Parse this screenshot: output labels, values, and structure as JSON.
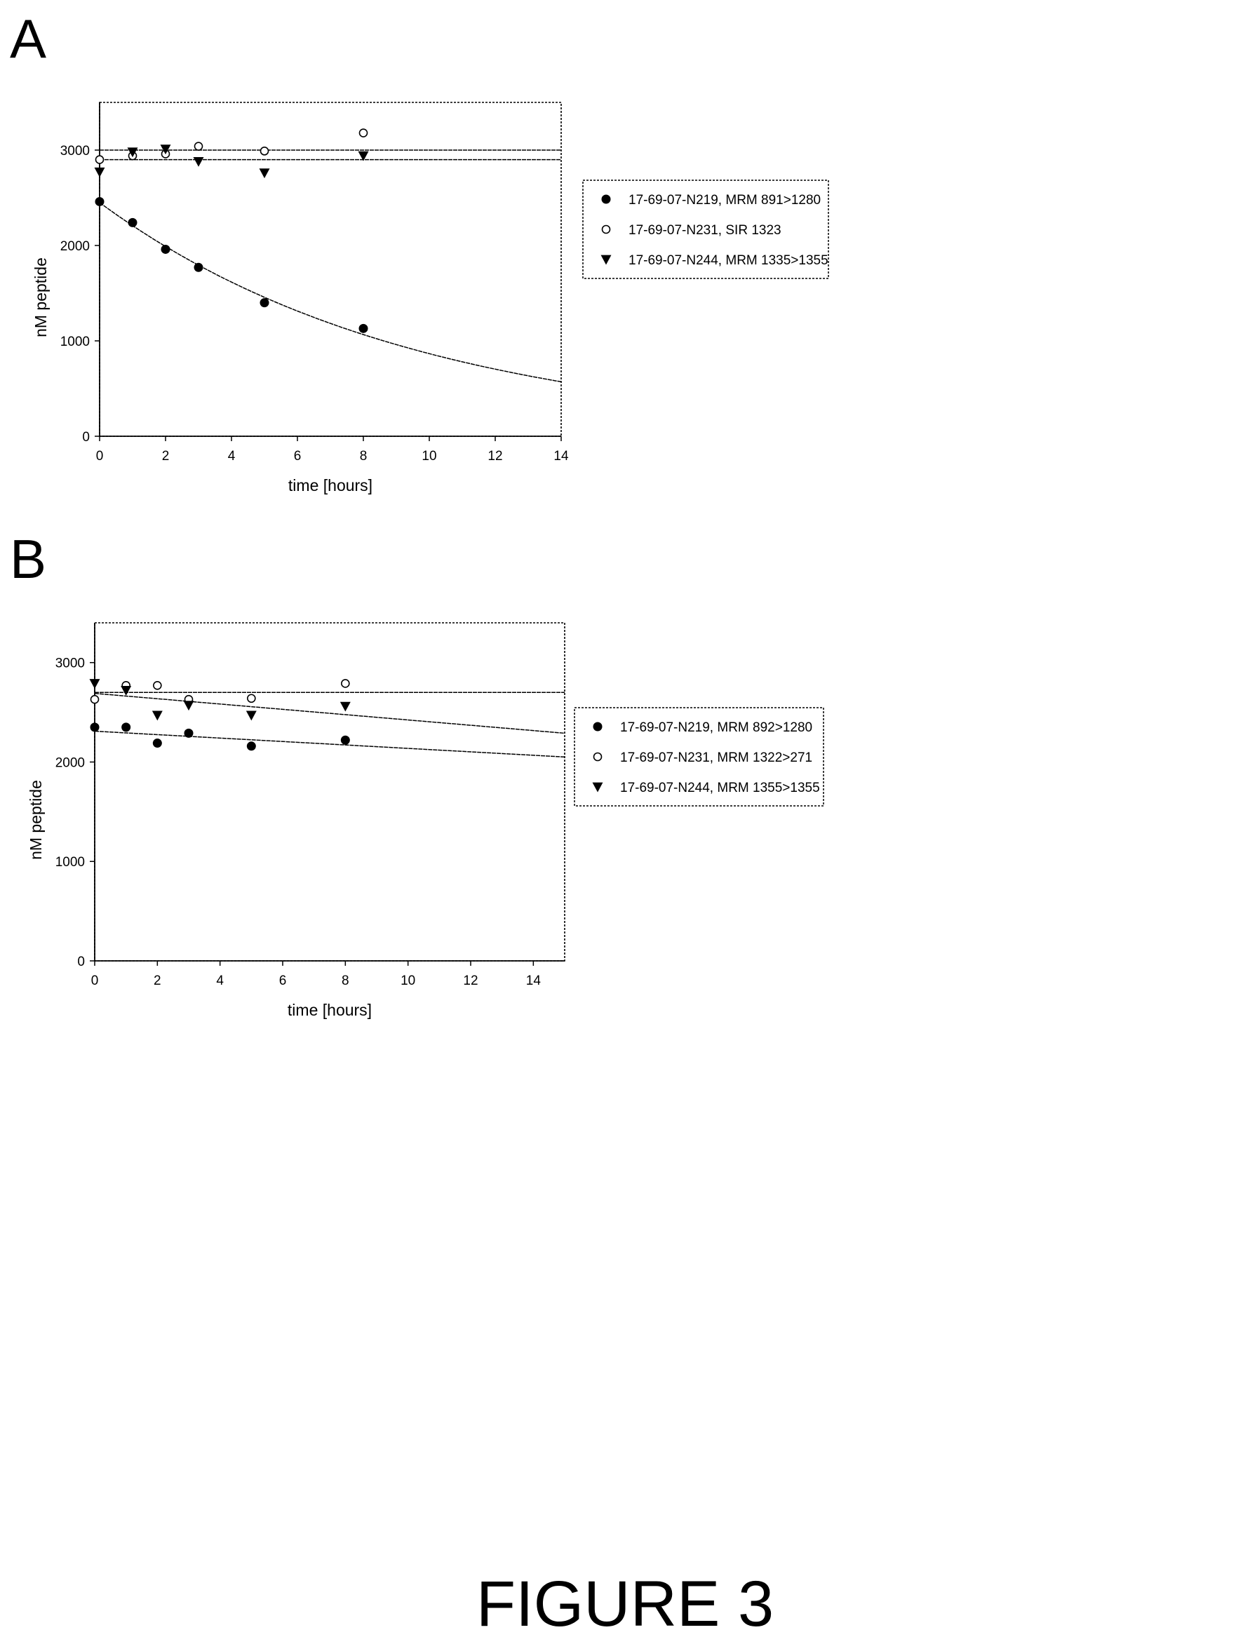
{
  "figure_caption": "FIGURE 3",
  "chart_data": [
    {
      "panel": "A",
      "type": "scatter",
      "xlabel": "time [hours]",
      "ylabel": "nM peptide",
      "xlim": [
        0,
        14
      ],
      "ylim": [
        0,
        3500
      ],
      "xticks": [
        "0",
        "2",
        "4",
        "6",
        "8",
        "10",
        "12",
        "14"
      ],
      "yticks": [
        "0",
        "1000",
        "2000",
        "3000"
      ],
      "legend_position": "right",
      "series": [
        {
          "name": "17-69-07-N219, MRM 891>1280",
          "marker": "filled-circle",
          "x": [
            0,
            1,
            2,
            3,
            5,
            8
          ],
          "y": [
            2460,
            2240,
            1960,
            1770,
            1400,
            1130
          ],
          "fit": {
            "type": "exponential",
            "a": 2450,
            "k": 0.104
          }
        },
        {
          "name": "17-69-07-N231, SIR 1323",
          "marker": "open-circle",
          "x": [
            0,
            1,
            2,
            3,
            5,
            8
          ],
          "y": [
            2900,
            2940,
            2960,
            3040,
            2990,
            3180
          ],
          "fit": {
            "type": "constant",
            "value": 3000
          }
        },
        {
          "name": "17-69-07-N244, MRM 1335>1355",
          "marker": "filled-triangle-down",
          "x": [
            0,
            1,
            2,
            3,
            5,
            8
          ],
          "y": [
            2770,
            2980,
            3010,
            2880,
            2760,
            2940
          ],
          "fit": {
            "type": "constant",
            "value": 2900
          }
        }
      ]
    },
    {
      "panel": "B",
      "type": "scatter",
      "xlabel": "time [hours]",
      "ylabel": "nM peptide",
      "xlim": [
        0,
        15
      ],
      "ylim": [
        0,
        3400
      ],
      "xticks": [
        "0",
        "2",
        "4",
        "6",
        "8",
        "10",
        "12",
        "14"
      ],
      "yticks": [
        "0",
        "1000",
        "2000",
        "3000"
      ],
      "legend_position": "right",
      "series": [
        {
          "name": "17-69-07-N219, MRM 892>1280",
          "marker": "filled-circle",
          "x": [
            0,
            1,
            2,
            3,
            5,
            8
          ],
          "y": [
            2350,
            2350,
            2190,
            2290,
            2160,
            2220
          ],
          "fit": {
            "type": "linear",
            "intercept": 2310,
            "slope": -17.3
          }
        },
        {
          "name": "17-69-07-N231, MRM 1322>271",
          "marker": "open-circle",
          "x": [
            0,
            1,
            2,
            3,
            5,
            8
          ],
          "y": [
            2630,
            2770,
            2770,
            2630,
            2640,
            2790
          ],
          "fit": {
            "type": "constant",
            "value": 2700
          }
        },
        {
          "name": "17-69-07-N244, MRM 1355>1355",
          "marker": "filled-triangle-down",
          "x": [
            0,
            1,
            2,
            3,
            5,
            8
          ],
          "y": [
            2790,
            2720,
            2470,
            2570,
            2470,
            2560
          ],
          "fit": {
            "type": "linear",
            "intercept": 2690,
            "slope": -26.7
          }
        }
      ]
    }
  ]
}
